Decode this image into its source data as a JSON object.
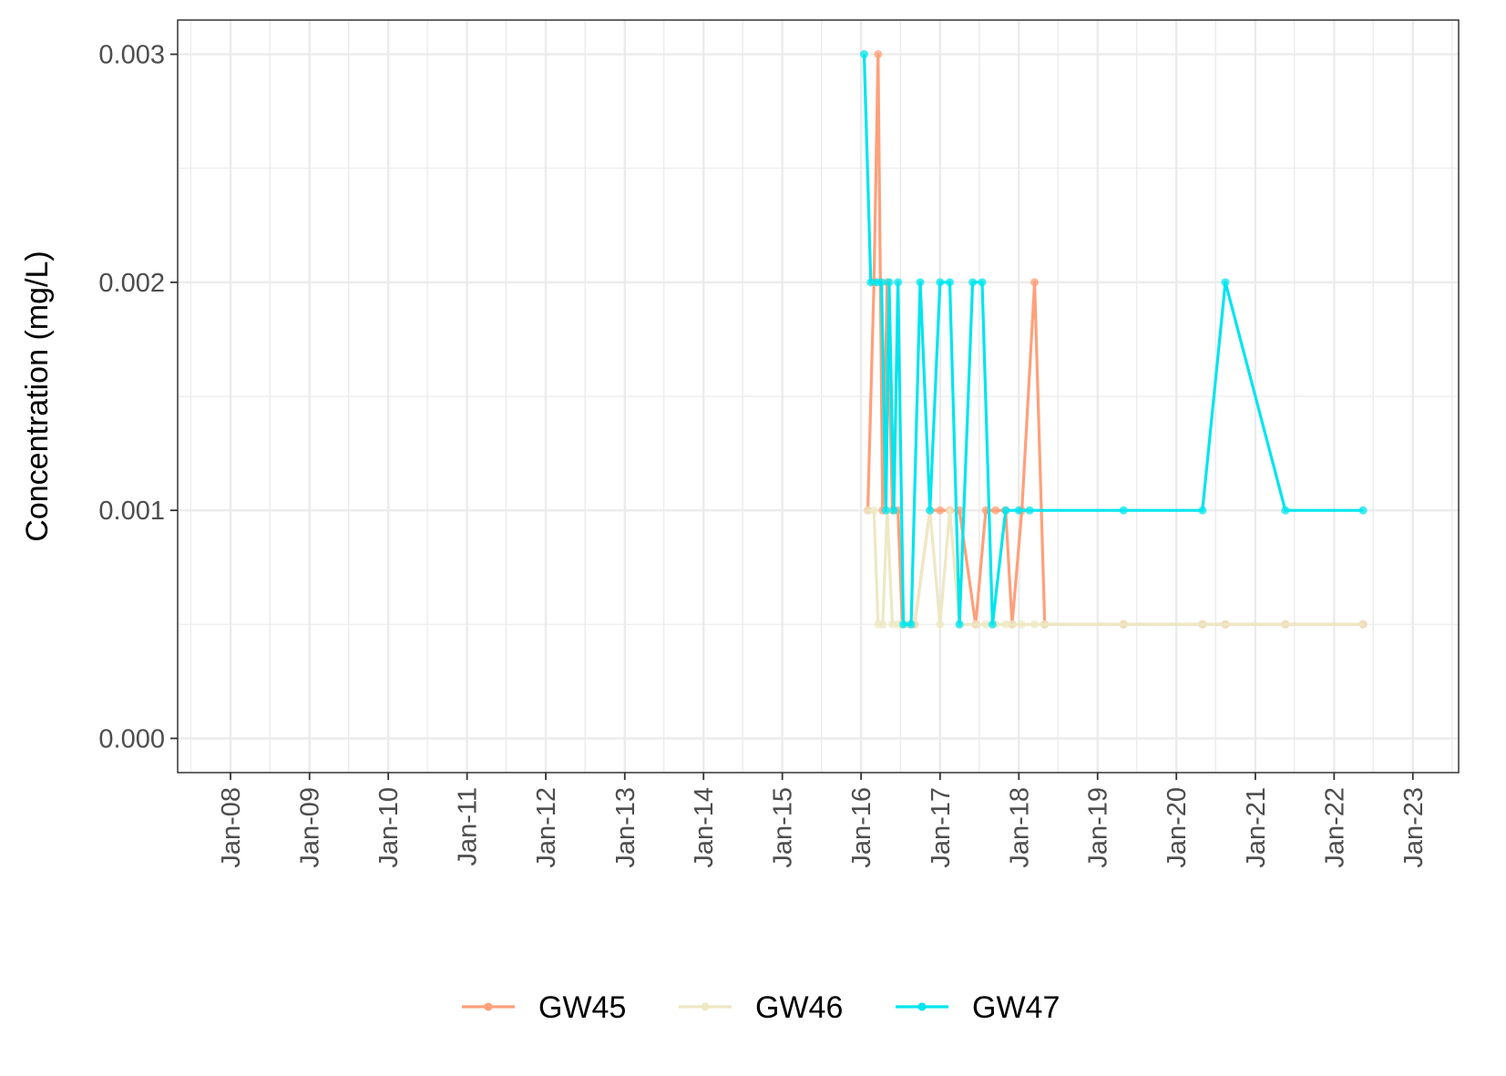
{
  "chart_data": {
    "type": "line",
    "title": "",
    "xlabel": "",
    "ylabel": "Concentration (mg/L)",
    "xlim": [
      "2007-05-01",
      "2023-08-01"
    ],
    "ylim": [
      -0.00015,
      0.00315
    ],
    "grid": true,
    "legend_position": "bottom",
    "x_ticks": [
      "2008-01-01",
      "2009-01-01",
      "2010-01-01",
      "2011-01-01",
      "2012-01-01",
      "2013-01-01",
      "2014-01-01",
      "2015-01-01",
      "2016-01-01",
      "2017-01-01",
      "2018-01-01",
      "2019-01-01",
      "2020-01-01",
      "2021-01-01",
      "2022-01-01",
      "2023-01-01"
    ],
    "x_tick_labels": [
      "Jan-08",
      "Jan-09",
      "Jan-10",
      "Jan-11",
      "Jan-12",
      "Jan-13",
      "Jan-14",
      "Jan-15",
      "Jan-16",
      "Jan-17",
      "Jan-18",
      "Jan-19",
      "Jan-20",
      "Jan-21",
      "Jan-22",
      "Jan-23"
    ],
    "y_ticks": [
      0,
      0.001,
      0.002,
      0.003
    ],
    "y_tick_labels": [
      "0.000",
      "0.001",
      "0.002",
      "0.003"
    ],
    "series": [
      {
        "name": "GW45",
        "color": "#FFA07A",
        "x": [
          "2016-02-01",
          "2016-03-01",
          "2016-03-20",
          "2016-04-10",
          "2016-05-01",
          "2016-05-25",
          "2016-06-20",
          "2016-07-10",
          "2016-08-10",
          "2016-09-05",
          "2016-11-15",
          "2017-01-01",
          "2017-02-15",
          "2017-04-01",
          "2017-06-15",
          "2017-08-01",
          "2017-09-15",
          "2017-11-01",
          "2017-12-01",
          "2018-01-15",
          "2018-03-15",
          "2018-05-01",
          "2019-05-01",
          "2020-05-01",
          "2020-08-15",
          "2021-05-20",
          "2022-05-15"
        ],
        "y": [
          0.001,
          0.002,
          0.003,
          0.001,
          0.002,
          0.001,
          0.001,
          0.0005,
          0.0005,
          0.0005,
          0.001,
          0.001,
          0.001,
          0.001,
          0.0005,
          0.001,
          0.001,
          0.001,
          0.0005,
          0.001,
          0.002,
          0.0005,
          0.0005,
          0.0005,
          0.0005,
          0.0005,
          0.0005
        ]
      },
      {
        "name": "GW46",
        "color": "#EEE8C4",
        "x": [
          "2016-02-01",
          "2016-03-01",
          "2016-03-20",
          "2016-04-10",
          "2016-05-01",
          "2016-05-25",
          "2016-06-20",
          "2016-07-10",
          "2016-08-10",
          "2016-09-05",
          "2016-11-15",
          "2017-01-01",
          "2017-02-15",
          "2017-04-01",
          "2017-06-15",
          "2017-08-01",
          "2017-09-15",
          "2017-11-01",
          "2017-12-01",
          "2018-01-15",
          "2018-03-15",
          "2018-05-01",
          "2019-05-01",
          "2020-05-01",
          "2020-08-15",
          "2021-05-20",
          "2022-05-15"
        ],
        "y": [
          0.001,
          0.001,
          0.0005,
          0.0005,
          0.001,
          0.0005,
          0.0005,
          0.0005,
          0.0005,
          0.0005,
          0.001,
          0.0005,
          0.001,
          0.0005,
          0.0005,
          0.0005,
          0.0005,
          0.0005,
          0.0005,
          0.0005,
          0.0005,
          0.0005,
          0.0005,
          0.0005,
          0.0005,
          0.0005,
          0.0005
        ]
      },
      {
        "name": "GW47",
        "color": "#00E5EE",
        "x": [
          "2016-01-15",
          "2016-02-15",
          "2016-03-15",
          "2016-04-05",
          "2016-04-25",
          "2016-05-10",
          "2016-06-01",
          "2016-06-20",
          "2016-07-15",
          "2016-08-20",
          "2016-10-01",
          "2016-11-15",
          "2017-01-01",
          "2017-02-15",
          "2017-04-01",
          "2017-06-01",
          "2017-07-15",
          "2017-09-01",
          "2017-11-01",
          "2018-01-01",
          "2018-02-20",
          "2019-05-01",
          "2020-05-01",
          "2020-08-15",
          "2021-05-20",
          "2022-05-15"
        ],
        "y": [
          0.003,
          0.002,
          0.002,
          0.002,
          0.001,
          0.002,
          0.001,
          0.002,
          0.0005,
          0.0005,
          0.002,
          0.001,
          0.002,
          0.002,
          0.0005,
          0.002,
          0.002,
          0.0005,
          0.001,
          0.001,
          0.001,
          0.001,
          0.001,
          0.002,
          0.001,
          0.001
        ]
      }
    ]
  }
}
